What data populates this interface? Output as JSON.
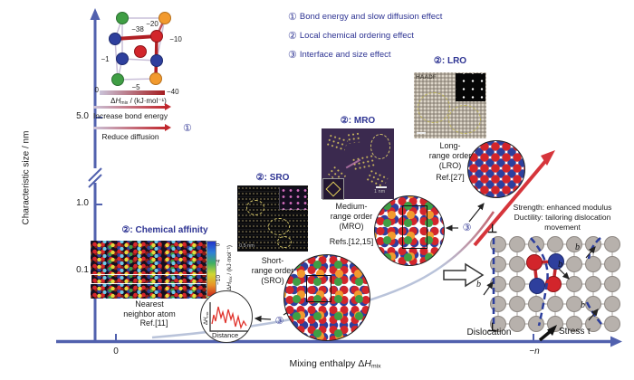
{
  "axes": {
    "y_label": "Characteristic size / nm",
    "y_tick_1": "5.0",
    "y_tick_2": "1.0",
    "y_tick_3": "0.1",
    "x_tick_zero": "0",
    "x_tick_n": "−n",
    "x_label_pre": "Mixing enthalpy Δ",
    "x_label_h": "H",
    "x_label_sub": "mix"
  },
  "legend": {
    "items": [
      {
        "marker": "①",
        "text": "Bond energy and slow diffusion effect"
      },
      {
        "marker": "②",
        "text": "Local chemical ordering effect"
      },
      {
        "marker": "③",
        "text": "Interface and size effect"
      }
    ]
  },
  "cube": {
    "bonds": {
      "top_front": "−38",
      "top_right": "−20",
      "right": "−10",
      "left": "−1",
      "bottom": "−5"
    },
    "scale_min": "0",
    "scale_max": "−40",
    "scale_pre": "Δ",
    "scale_h": "H",
    "scale_sub": "mix",
    "scale_units": " / (kJ·mol⁻¹)",
    "arrow1_label": "Increase bond energy",
    "arrow2_label": "Reduce diffusion",
    "marker": "①"
  },
  "affinity": {
    "title": "②: Chemical affinity",
    "caption1": "Nearest",
    "caption2": "neighbor atom",
    "ref": "Ref.[11]",
    "cb_t1": "0",
    "cb_t2": "−4",
    "cb_t3": "−10",
    "cb_pre": "Δ",
    "cb_h": "H",
    "cb_sub": "mix",
    "cb_units": " / (kJ·mol⁻¹)"
  },
  "signal": {
    "y_pre": "Δ",
    "y_h": "H",
    "y_sub": "mix",
    "x_label": "Distance"
  },
  "sro": {
    "title": "②: SRO",
    "cap1": "Short-",
    "cap2": "range order",
    "cap3": "(SRO)",
    "scalebar": "0.5 nm"
  },
  "mro": {
    "title": "②: MRO",
    "cap1": "Medium-",
    "cap2": "range order",
    "cap3": "(MRO)",
    "refs": "Refs.[12,15]",
    "scalebar": "1 nm"
  },
  "lro": {
    "title": "②: LRO",
    "cap1": "Long-",
    "cap2": "range order",
    "cap3": "(LRO)",
    "ref": "Ref.[27]",
    "tag": "HAADF"
  },
  "marker3": "③",
  "mechanics": {
    "line1": "Strength: enhanced modulus",
    "line2": "Ductility: tailoring dislocation",
    "line3": "movement",
    "dislocation": "Dislocation",
    "stress": "Stress τ",
    "b": "b",
    "perp": "⊥"
  },
  "colors": {
    "axis": "#5161ae",
    "navy_text": "#2e3493",
    "trend_arrow_red": "#d6353b",
    "curve_light": "#b9c3da",
    "atom_red": "#d2252b",
    "atom_blue": "#2e3f9d",
    "atom_green": "#3f9e44",
    "atom_orange": "#f29a2e",
    "lattice_gray": "#b7b1ac"
  }
}
